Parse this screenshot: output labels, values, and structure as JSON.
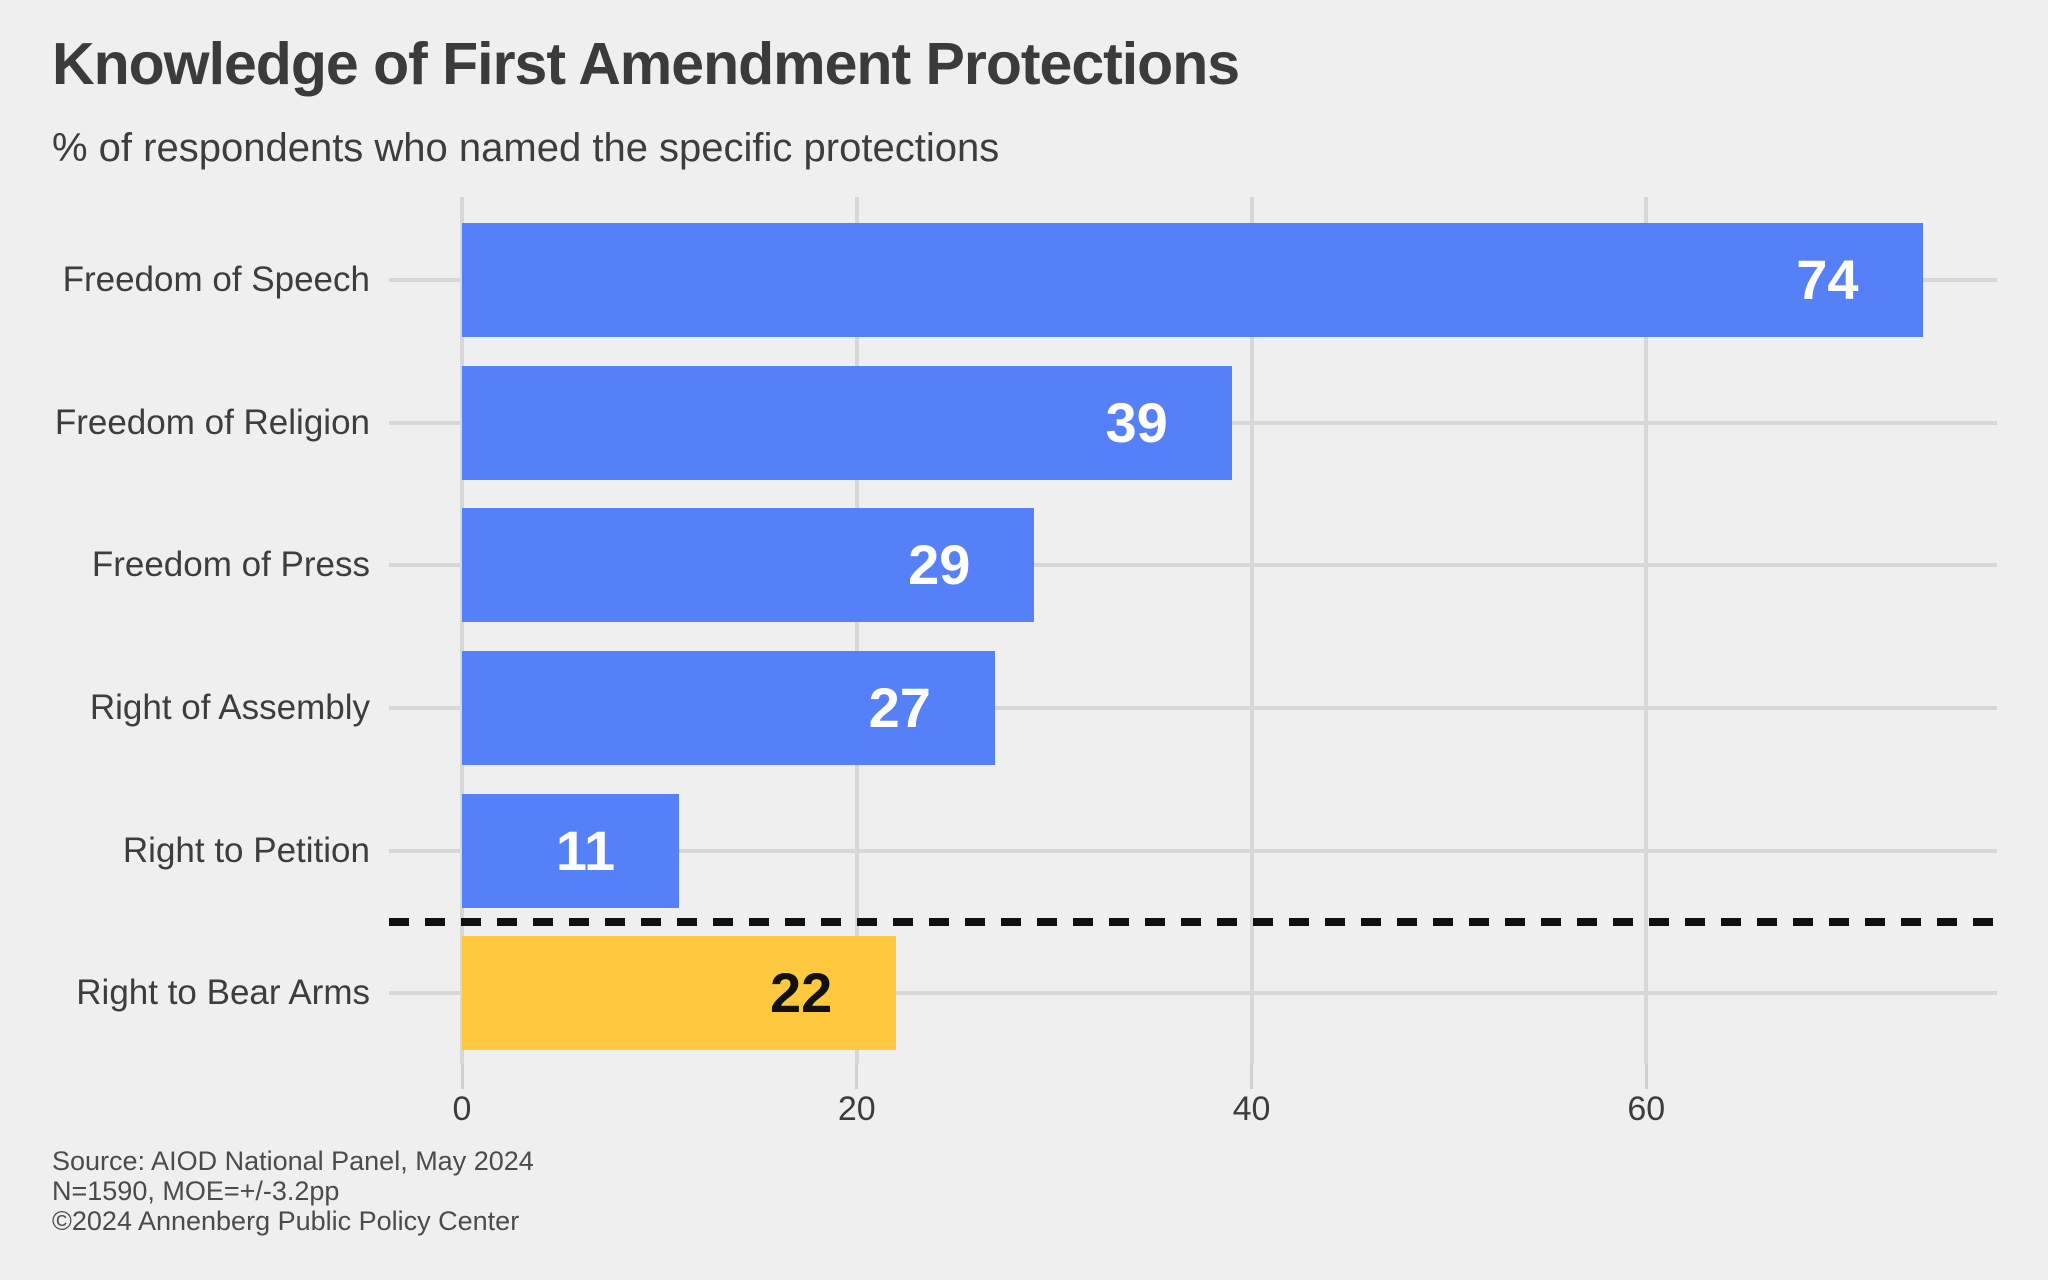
{
  "header": {
    "title": "Knowledge of First Amendment Protections",
    "subtitle": "% of respondents who named the specific protections"
  },
  "chart_data": {
    "type": "bar",
    "orientation": "horizontal",
    "title": "Knowledge of First Amendment Protections",
    "subtitle": "% of respondents who named the specific protections",
    "categories": [
      "Freedom of Speech",
      "Freedom of Religion",
      "Freedom of Press",
      "Right of Assembly",
      "Right to Petition",
      "Right to Bear Arms"
    ],
    "values": [
      74,
      39,
      29,
      27,
      11,
      22
    ],
    "bar_colors": [
      "#5580f7",
      "#5580f7",
      "#5580f7",
      "#5580f7",
      "#5580f7",
      "#fec93e"
    ],
    "value_label_colors": [
      "#ffffff",
      "#ffffff",
      "#ffffff",
      "#ffffff",
      "#ffffff",
      "#111111"
    ],
    "x_ticks": [
      0,
      20,
      40,
      60
    ],
    "x_tick_labels": [
      "0",
      "20",
      "40",
      "60"
    ],
    "xlim": [
      -3.7,
      77.77
    ],
    "xlabel": "",
    "ylabel": "",
    "grid": "major-x vertical lines and per-category horizontal lines, light gray on light gray panel",
    "legend": "none",
    "separator": {
      "after_category_index": 4,
      "style": "dashed",
      "color": "#111111"
    }
  },
  "footer": {
    "source_lines": [
      "Source: AIOD National Panel, May 2024",
      "N=1590, MOE=+/-3.2pp",
      "©2024 Annenberg Public Policy Center"
    ]
  },
  "colors": {
    "background": "#efefef",
    "gridline": "#d7d7d7",
    "tick": "#cfcfcf",
    "text_dark": "#3b3b3b",
    "axis_text": "#3d3d3d",
    "source_text": "#4b4b4b",
    "bar_blue": "#5580f7",
    "bar_yellow": "#fec93e"
  }
}
